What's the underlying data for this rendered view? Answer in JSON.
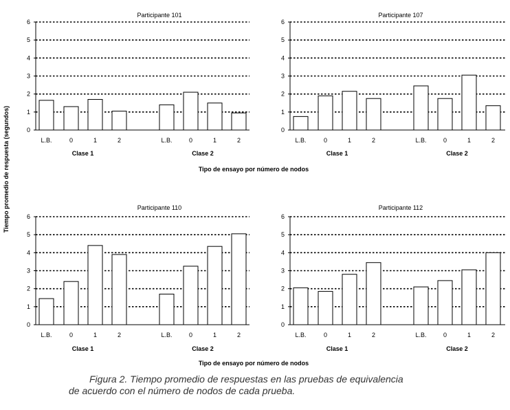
{
  "figure": {
    "ylabel": "Tiempo promedio de respuesta (segundos)",
    "xlabel": "Tipo de ensayo por número de nodos",
    "caption_line1": "Figura 2. Tiempo promedio de respuestas en las pruebas de equivalencia",
    "caption_line2": "de acuerdo con el número de nodos de cada prueba."
  },
  "chart_data": [
    {
      "type": "bar",
      "title": "Participante 101",
      "groups": [
        "Clase 1",
        "Clase 2"
      ],
      "categories": [
        "L.B.",
        "0",
        "1",
        "2"
      ],
      "series": [
        {
          "name": "Clase 1",
          "values": [
            1.65,
            1.3,
            1.7,
            1.05
          ]
        },
        {
          "name": "Clase 2",
          "values": [
            1.4,
            2.1,
            1.5,
            0.95
          ]
        }
      ],
      "yticks": [
        "0",
        "1",
        "2",
        "3",
        "4",
        "5",
        "6"
      ],
      "ylim": [
        0,
        6
      ]
    },
    {
      "type": "bar",
      "title": "Participante 107",
      "groups": [
        "Clase 1",
        "Clase 2"
      ],
      "categories": [
        "L.B.",
        "0",
        "1",
        "2"
      ],
      "series": [
        {
          "name": "Clase 1",
          "values": [
            0.75,
            1.9,
            2.15,
            1.75
          ]
        },
        {
          "name": "Clase 2",
          "values": [
            2.45,
            1.75,
            3.05,
            1.35
          ]
        }
      ],
      "yticks": [
        "0",
        "1",
        "2",
        "3",
        "4",
        "5",
        "6"
      ],
      "ylim": [
        0,
        6
      ]
    },
    {
      "type": "bar",
      "title": "Participante 110",
      "groups": [
        "Clase 1",
        "Clase 2"
      ],
      "categories": [
        "L.B.",
        "0",
        "1",
        "2"
      ],
      "series": [
        {
          "name": "Clase 1",
          "values": [
            1.45,
            2.4,
            4.4,
            3.9
          ]
        },
        {
          "name": "Clase 2",
          "values": [
            1.7,
            3.25,
            4.35,
            5.05
          ]
        }
      ],
      "yticks": [
        "0",
        "1",
        "2",
        "3",
        "4",
        "5",
        "6"
      ],
      "ylim": [
        0,
        6
      ]
    },
    {
      "type": "bar",
      "title": "Participante 112",
      "groups": [
        "Clase 1",
        "Clase 2"
      ],
      "categories": [
        "L.B.",
        "0",
        "1",
        "2"
      ],
      "series": [
        {
          "name": "Clase 1",
          "values": [
            2.05,
            1.85,
            2.8,
            3.45
          ]
        },
        {
          "name": "Clase 2",
          "values": [
            2.1,
            2.45,
            3.05,
            4.0
          ]
        }
      ],
      "yticks": [
        "0",
        "1",
        "2",
        "3",
        "4",
        "5",
        "6"
      ],
      "ylim": [
        0,
        6
      ]
    }
  ]
}
